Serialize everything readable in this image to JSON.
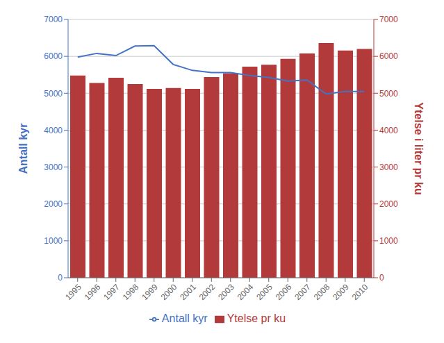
{
  "chart_data": {
    "type": "bar",
    "ylabel": "Antall kyr",
    "y2label": "Ytelse i liter pr ku",
    "categories": [
      "1995",
      "1996",
      "1997",
      "1998",
      "1999",
      "2000",
      "2001",
      "2002",
      "2003",
      "2004",
      "2005",
      "2006",
      "2007",
      "2008",
      "2009",
      "2010"
    ],
    "series": [
      {
        "name": "Ytelse pr ku",
        "type": "bar",
        "axis": "y2",
        "color": "#B33A3A",
        "values": [
          5480,
          5280,
          5420,
          5250,
          5120,
          5140,
          5120,
          5440,
          5540,
          5720,
          5770,
          5930,
          6080,
          6360,
          6160,
          6200
        ]
      },
      {
        "name": "Antall kyr",
        "type": "line",
        "color": "#4472C4",
        "values": [
          5980,
          6080,
          6020,
          6280,
          6290,
          5780,
          5620,
          5560,
          5560,
          5480,
          5430,
          5330,
          5360,
          4980,
          5050,
          5050
        ]
      }
    ],
    "ylim": [
      0,
      7000
    ],
    "yticks": [
      0,
      1000,
      2000,
      3000,
      4000,
      5000,
      6000,
      7000
    ],
    "y2lim": [
      0,
      7000
    ],
    "y2ticks": [
      0,
      1000,
      2000,
      3000,
      4000,
      5000,
      6000,
      7000
    ],
    "grid": true,
    "legend": "bottom"
  }
}
